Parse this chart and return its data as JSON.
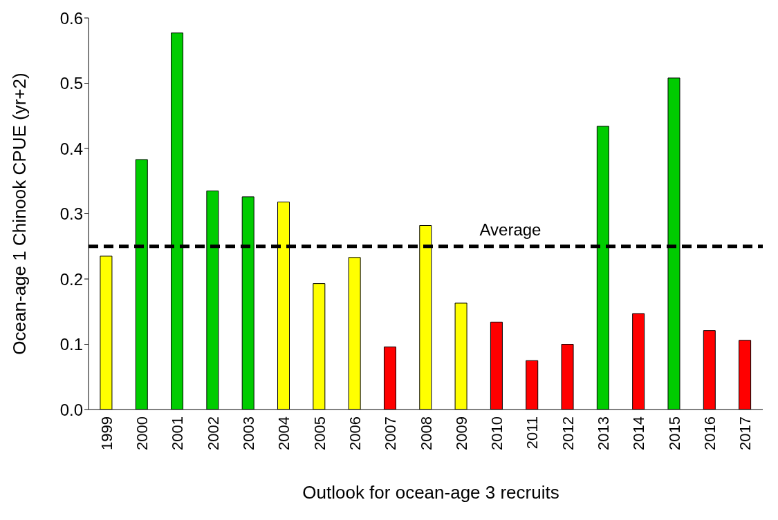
{
  "chart_data": {
    "type": "bar",
    "xlabel": "Outlook for ocean-age 3 recruits",
    "ylabel": "Ocean-age 1 Chinook CPUE (yr+2)",
    "categories": [
      "1999",
      "2000",
      "2001",
      "2002",
      "2003",
      "2004",
      "2005",
      "2006",
      "2007",
      "2008",
      "2009",
      "2010",
      "2011",
      "2012",
      "2013",
      "2014",
      "2015",
      "2016",
      "2017"
    ],
    "values": [
      0.235,
      0.383,
      0.577,
      0.335,
      0.326,
      0.318,
      0.193,
      0.233,
      0.096,
      0.282,
      0.163,
      0.134,
      0.075,
      0.1,
      0.434,
      0.147,
      0.508,
      0.121,
      0.106
    ],
    "colors": [
      "#ffff00",
      "#00cc00",
      "#00cc00",
      "#00cc00",
      "#00cc00",
      "#ffff00",
      "#ffff00",
      "#ffff00",
      "#ff0000",
      "#ffff00",
      "#ffff00",
      "#ff0000",
      "#ff0000",
      "#ff0000",
      "#00cc00",
      "#ff0000",
      "#00cc00",
      "#ff0000",
      "#ff0000"
    ],
    "ylim": [
      0,
      0.6
    ],
    "yticks": [
      {
        "value": 0,
        "label": "0.0"
      },
      {
        "value": 0.1,
        "label": "0.1"
      },
      {
        "value": 0.2,
        "label": "0.2"
      },
      {
        "value": 0.3,
        "label": "0.3"
      },
      {
        "value": 0.4,
        "label": "0.4"
      },
      {
        "value": 0.5,
        "label": "0.5"
      },
      {
        "value": 0.6,
        "label": "0.6"
      }
    ],
    "ref_lines": [
      {
        "axis": "y",
        "value": 0.25,
        "label": "Average",
        "color": "#000000",
        "line_style": "dashed"
      }
    ],
    "grid": false,
    "legend": false
  }
}
